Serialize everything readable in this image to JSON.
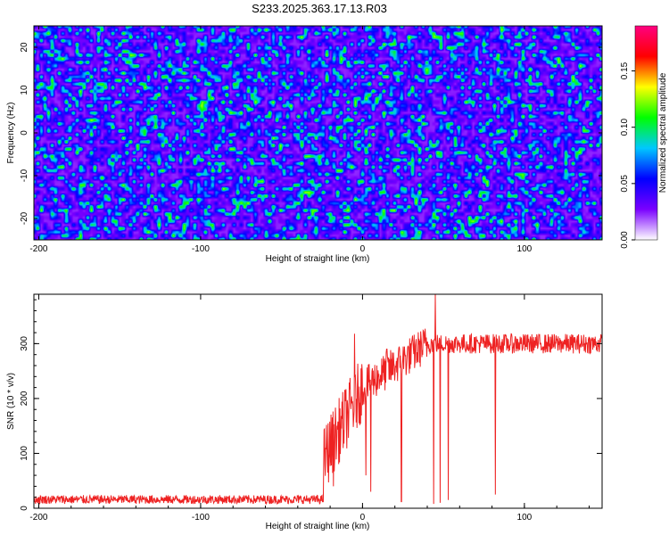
{
  "title": "S233.2025.363.17.13.R03",
  "chart_data": [
    {
      "type": "heatmap",
      "name": "spectrogram",
      "xlabel": "Height of straight line (km)",
      "ylabel": "Frequency (Hz)",
      "xlim": [
        -203,
        148
      ],
      "ylim": [
        -25,
        25
      ],
      "xticks": [
        -200,
        -100,
        0,
        100
      ],
      "yticks": [
        -20,
        -10,
        0,
        10,
        20
      ],
      "colorbar": {
        "label": "Normalized spectral amplitude",
        "range": [
          0,
          0.19
        ],
        "ticks": [
          "0.00",
          "0.05",
          "0.10",
          "0.15"
        ],
        "tick_values": [
          0,
          0.05,
          0.1,
          0.15
        ],
        "colormap": [
          "#ffffff",
          "#7a00ff",
          "#0000ff",
          "#00c8ff",
          "#00ff00",
          "#ffff00",
          "#ff0000",
          "#ff0080"
        ]
      },
      "description_values": "noise-like field, typical amplitude 0.01-0.04, sparse peaks up to ~0.19"
    },
    {
      "type": "line",
      "name": "snr",
      "xlabel": "Height of straight line (km)",
      "ylabel": "SNR (10 * v/v)",
      "xlim": [
        -203,
        148
      ],
      "ylim": [
        0,
        390
      ],
      "xticks": [
        -200,
        -100,
        0,
        100
      ],
      "yticks": [
        0,
        100,
        200,
        300
      ],
      "color": "#ee2222",
      "segments": [
        {
          "x_start": -203,
          "x_end": -24,
          "mean": 16,
          "noise": 8
        },
        {
          "x_start": -24,
          "x_end": 0,
          "mean_start": 90,
          "mean_end": 220,
          "noise": 60
        },
        {
          "x_start": 0,
          "x_end": 40,
          "mean_start": 220,
          "mean_end": 300,
          "noise": 35
        },
        {
          "x_start": 40,
          "x_end": 148,
          "mean": 300,
          "noise": 18
        }
      ],
      "spikes_down": [
        {
          "x": -18,
          "y": 40
        },
        {
          "x": -5,
          "y": 70
        },
        {
          "x": 2,
          "y": 60
        },
        {
          "x": 5,
          "y": 30
        },
        {
          "x": 24,
          "y": 12
        },
        {
          "x": 44,
          "y": 8
        },
        {
          "x": 48,
          "y": 10
        },
        {
          "x": 53,
          "y": 15
        },
        {
          "x": 82,
          "y": 25
        }
      ],
      "spikes_up": [
        {
          "x": -5,
          "y": 318
        },
        {
          "x": 15,
          "y": 290
        },
        {
          "x": 45,
          "y": 390
        }
      ]
    }
  ]
}
